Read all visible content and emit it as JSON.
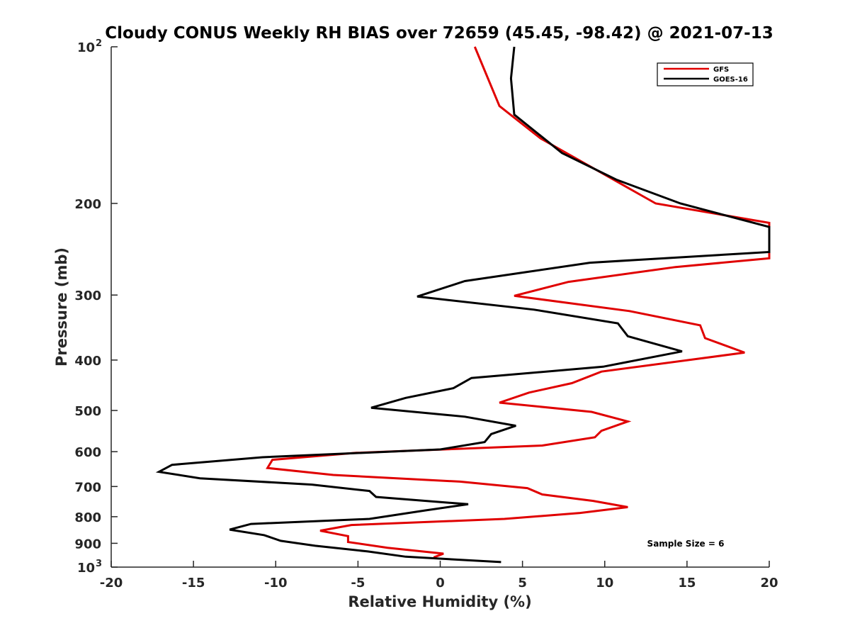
{
  "chart_data": {
    "type": "line",
    "title": "Cloudy CONUS Weekly RH BIAS over 72659 (45.45, -98.42) @ 2021-07-13",
    "xlabel": "Relative Humidity (%)",
    "ylabel": "Pressure (mb)",
    "xlim": [
      -20,
      20
    ],
    "ylim": [
      1000,
      100
    ],
    "y_scale": "log",
    "y_reversed": true,
    "grid": false,
    "legend_position": "top-right",
    "x_ticks": [
      -20,
      -15,
      -10,
      -5,
      0,
      5,
      10,
      15,
      20
    ],
    "x_tick_labels": [
      "-20",
      "-15",
      "-10",
      "-5",
      "0",
      "5",
      "10",
      "15",
      "20"
    ],
    "y_ticks": [
      {
        "value": 100,
        "base": "10",
        "exp": "2"
      },
      {
        "value": 200,
        "base": "200",
        "exp": ""
      },
      {
        "value": 300,
        "base": "300",
        "exp": ""
      },
      {
        "value": 400,
        "base": "400",
        "exp": ""
      },
      {
        "value": 500,
        "base": "500",
        "exp": ""
      },
      {
        "value": 600,
        "base": "600",
        "exp": ""
      },
      {
        "value": 700,
        "base": "700",
        "exp": ""
      },
      {
        "value": 800,
        "base": "800",
        "exp": ""
      },
      {
        "value": 900,
        "base": "900",
        "exp": ""
      },
      {
        "value": 1000,
        "base": "10",
        "exp": "3"
      }
    ],
    "annotation": "Sample Size = 6",
    "series": [
      {
        "name": "GFS",
        "color": "#e00000",
        "points": [
          [
            2.1,
            100
          ],
          [
            3.6,
            130
          ],
          [
            6.1,
            150
          ],
          [
            13.1,
            200
          ],
          [
            20.0,
            218
          ],
          [
            20.0,
            255
          ],
          [
            14.3,
            265
          ],
          [
            7.8,
            283
          ],
          [
            4.5,
            301
          ],
          [
            11.5,
            322
          ],
          [
            15.8,
            343
          ],
          [
            16.1,
            363
          ],
          [
            18.5,
            387
          ],
          [
            9.8,
            421
          ],
          [
            8.0,
            443
          ],
          [
            5.4,
            462
          ],
          [
            3.6,
            483
          ],
          [
            9.2,
            503
          ],
          [
            11.4,
            525
          ],
          [
            9.8,
            547
          ],
          [
            9.4,
            563
          ],
          [
            6.2,
            584
          ],
          [
            -5.1,
            603
          ],
          [
            -10.2,
            622
          ],
          [
            -10.5,
            645
          ],
          [
            -6.5,
            665
          ],
          [
            1.2,
            685
          ],
          [
            5.3,
            705
          ],
          [
            6.2,
            725
          ],
          [
            9.3,
            746
          ],
          [
            11.4,
            767
          ],
          [
            8.5,
            787
          ],
          [
            3.9,
            808
          ],
          [
            -5.4,
            830
          ],
          [
            -7.3,
            851
          ],
          [
            -5.6,
            872
          ],
          [
            -5.6,
            895
          ],
          [
            -3.2,
            918
          ],
          [
            0.2,
            942
          ],
          [
            -0.4,
            958
          ]
        ]
      },
      {
        "name": "GOES-16",
        "color": "#000000",
        "points": [
          [
            4.5,
            100
          ],
          [
            4.3,
            115
          ],
          [
            4.5,
            135
          ],
          [
            7.4,
            160
          ],
          [
            10.7,
            180
          ],
          [
            14.6,
            200
          ],
          [
            20.0,
            222
          ],
          [
            20.0,
            248
          ],
          [
            9.1,
            260
          ],
          [
            1.5,
            282
          ],
          [
            -1.4,
            302
          ],
          [
            5.7,
            320
          ],
          [
            10.8,
            340
          ],
          [
            11.4,
            360
          ],
          [
            14.7,
            385
          ],
          [
            9.9,
            412
          ],
          [
            1.9,
            433
          ],
          [
            0.8,
            453
          ],
          [
            -2.1,
            473
          ],
          [
            -4.2,
            494
          ],
          [
            1.5,
            514
          ],
          [
            4.6,
            535
          ],
          [
            3.1,
            555
          ],
          [
            2.7,
            575
          ],
          [
            0.0,
            594
          ],
          [
            -10.8,
            615
          ],
          [
            -16.3,
            636
          ],
          [
            -17.1,
            656
          ],
          [
            -14.6,
            675
          ],
          [
            -7.8,
            694
          ],
          [
            -4.3,
            714
          ],
          [
            -3.9,
            733
          ],
          [
            1.7,
            757
          ],
          [
            -0.9,
            778
          ],
          [
            -4.3,
            808
          ],
          [
            -11.5,
            826
          ],
          [
            -12.8,
            847
          ],
          [
            -10.7,
            868
          ],
          [
            -9.7,
            890
          ],
          [
            -7.6,
            910
          ],
          [
            -4.4,
            933
          ],
          [
            -2.1,
            955
          ],
          [
            3.7,
            978
          ]
        ]
      }
    ]
  }
}
